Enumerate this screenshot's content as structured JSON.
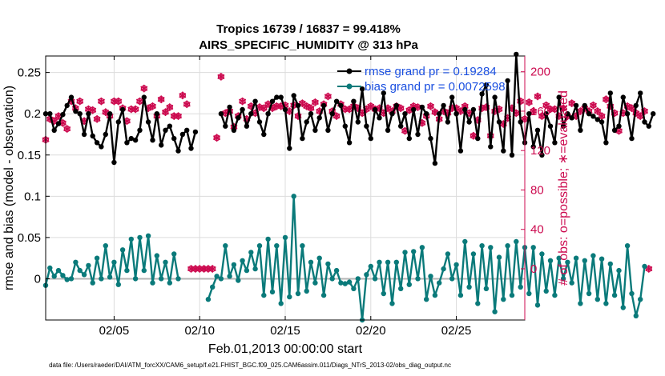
{
  "chart_data": {
    "type": "line",
    "title": "Tropics 16739 / 16837 = 99.418%",
    "subtitle": "AIRS_SPECIFIC_HUMIDITY @ 313 hPa",
    "xlabel": "Feb.01,2013 00:00:00 start",
    "ylabel": "rmse and bias (model - observation)",
    "y2label": "# of obs: o=possible; ∗=evaluated",
    "xlim": [
      1,
      29
    ],
    "ylim": [
      -0.05,
      0.27
    ],
    "y2lim": [
      -52,
      216
    ],
    "grid": true,
    "x_ticks": [
      5,
      10,
      15,
      20,
      25
    ],
    "x_tick_labels": [
      "02/05",
      "02/10",
      "02/15",
      "02/20",
      "02/25"
    ],
    "y_ticks": [
      0,
      0.05,
      0.1,
      0.15,
      0.2,
      0.25
    ],
    "y_tick_labels": [
      "0",
      "0.05",
      "0.1",
      "0.15",
      "0.2",
      "0.25"
    ],
    "y2_ticks": [
      0,
      40,
      80,
      120,
      160,
      200
    ],
    "y2_tick_labels": [
      "0",
      "40",
      "80",
      "120",
      "160",
      "200"
    ],
    "x_start": 1,
    "x_step": 0.25,
    "legend": {
      "placement": "top-right",
      "entries": [
        {
          "label": "rmse grand pr = 0.19284",
          "color": "#000000"
        },
        {
          "label": "bias grand pr = 0.0072598",
          "color": "#0a7a7a"
        }
      ]
    },
    "series": [
      {
        "name": "rmse",
        "axis": "left",
        "color": "#000000",
        "values": [
          0.2,
          0.2,
          0.18,
          0.188,
          0.199,
          0.21,
          0.22,
          0.203,
          0.2,
          0.175,
          0.2,
          0.173,
          0.165,
          0.16,
          0.175,
          0.2,
          0.141,
          0.19,
          0.205,
          0.165,
          0.17,
          0.168,
          0.18,
          0.22,
          0.19,
          0.168,
          0.2,
          0.162,
          0.18,
          0.185,
          0.17,
          0.155,
          0.175,
          0.18,
          0.158,
          0.178,
          null,
          null,
          null,
          null,
          null,
          0.2,
          0.185,
          0.208,
          0.18,
          0.195,
          0.205,
          0.185,
          0.2,
          0.215,
          0.19,
          0.175,
          0.2,
          0.215,
          0.22,
          0.22,
          0.205,
          0.158,
          0.222,
          0.21,
          0.17,
          0.19,
          0.2,
          0.18,
          0.195,
          0.21,
          0.18,
          0.2,
          0.215,
          0.21,
          0.185,
          0.165,
          0.215,
          0.19,
          0.23,
          0.185,
          0.17,
          0.205,
          0.195,
          0.225,
          0.18,
          0.2,
          0.21,
          0.185,
          0.2,
          0.17,
          0.205,
          0.175,
          0.208,
          0.2,
          0.17,
          0.14,
          0.2,
          0.21,
          0.19,
          0.22,
          0.2,
          0.155,
          0.205,
          0.19,
          0.205,
          0.17,
          0.224,
          0.235,
          0.16,
          0.22,
          0.19,
          0.155,
          0.24,
          0.15,
          0.272,
          0.19,
          0.165,
          0.2,
          0.16,
          0.18,
          0.15,
          0.2,
          0.185,
          0.165,
          0.22,
          0.185,
          0.2,
          0.195,
          0.21,
          0.18,
          0.21,
          0.2,
          0.197,
          0.193,
          0.19,
          0.165,
          0.225,
          0.18,
          0.185,
          0.22,
          0.2,
          0.17,
          0.21,
          0.225,
          0.19,
          0.185,
          0.2
        ]
      },
      {
        "name": "bias",
        "axis": "left",
        "color": "#0a7a7a",
        "values": [
          -0.008,
          0.013,
          0.003,
          0.01,
          0.004,
          -0.001,
          0.0,
          0.02,
          0.01,
          0.005,
          0.016,
          -0.005,
          0.025,
          0.0,
          0.04,
          0.002,
          0.02,
          -0.007,
          0.035,
          0.01,
          0.048,
          0.0,
          0.05,
          0.01,
          0.052,
          -0.005,
          0.028,
          0.0,
          0.02,
          -0.005,
          0.03,
          0.0,
          null,
          null,
          null,
          null,
          null,
          null,
          -0.025,
          -0.01,
          0.003,
          0.0,
          0.04,
          0.003,
          0.017,
          -0.002,
          0.022,
          0.01,
          0.032,
          0.012,
          0.04,
          -0.02,
          0.048,
          -0.016,
          0.04,
          -0.03,
          0.05,
          -0.022,
          0.1,
          -0.018,
          0.04,
          -0.015,
          0.02,
          -0.005,
          0.025,
          -0.02,
          0.018,
          0.0,
          0.01,
          -0.005,
          -0.006,
          -0.004,
          -0.012,
          0.0,
          -0.05,
          0.005,
          0.015,
          0.0,
          0.02,
          -0.018,
          0.02,
          -0.03,
          0.02,
          -0.012,
          0.032,
          -0.007,
          0.033,
          0.0,
          0.038,
          -0.025,
          0.003,
          -0.02,
          -0.005,
          0.012,
          0.03,
          0.0,
          0.017,
          -0.02,
          0.045,
          -0.01,
          0.03,
          -0.03,
          0.04,
          -0.012,
          0.038,
          -0.04,
          0.026,
          -0.025,
          0.04,
          -0.02,
          0.045,
          -0.01,
          0.038,
          -0.018,
          0.038,
          -0.032,
          0.03,
          -0.015,
          0.022,
          -0.02,
          0.025,
          0.0,
          0.02,
          -0.005,
          0.025,
          -0.03,
          0.022,
          -0.018,
          0.028,
          -0.025,
          0.024,
          -0.03,
          0.018,
          -0.02,
          0.01,
          -0.035,
          0.04,
          -0.018,
          -0.045,
          -0.025,
          0.015
        ]
      },
      {
        "name": "obs possible",
        "axis": "right",
        "color": "#cc0a4f",
        "marker": "o",
        "values": [
          131,
          152,
          150,
          155,
          148,
          142,
          170,
          163,
          170,
          150,
          162,
          161,
          152,
          170,
          159,
          155,
          170,
          170,
          163,
          150,
          162,
          162,
          170,
          183,
          163,
          165,
          155,
          172,
          159,
          164,
          155,
          155,
          176,
          167,
          0,
          0,
          0,
          0,
          0,
          0,
          133,
          195,
          158,
          160,
          144,
          155,
          170,
          152,
          165,
          158,
          164,
          163,
          167,
          163,
          165,
          165,
          166,
          160,
          166,
          155,
          168,
          165,
          163,
          169,
          160,
          167,
          175,
          160,
          155,
          167,
          162,
          162,
          165,
          163,
          158,
          162,
          165,
          162,
          163,
          158,
          163,
          160,
          165,
          163,
          140,
          161,
          165,
          164,
          148,
          155,
          165,
          159,
          152,
          160,
          158,
          163,
          163,
          160,
          165,
          158,
          135,
          151,
          163,
          164,
          135,
          160,
          162,
          147,
          153,
          163,
          158,
          170,
          152,
          169,
          160,
          175,
          155,
          166,
          162,
          162,
          155,
          163,
          155,
          168,
          155,
          160,
          163,
          160,
          166,
          160,
          155,
          172,
          165,
          158,
          140,
          158,
          165,
          163,
          158,
          155,
          160,
          0
        ]
      },
      {
        "name": "obs evaluated",
        "axis": "right",
        "color": "#cc0a4f",
        "marker": "*",
        "values": [
          131,
          152,
          150,
          155,
          148,
          142,
          170,
          163,
          170,
          150,
          162,
          161,
          152,
          170,
          159,
          155,
          170,
          170,
          163,
          150,
          162,
          162,
          170,
          183,
          163,
          165,
          155,
          172,
          159,
          164,
          155,
          155,
          176,
          167,
          0,
          0,
          0,
          0,
          0,
          0,
          133,
          195,
          158,
          160,
          144,
          155,
          170,
          152,
          165,
          158,
          164,
          163,
          167,
          163,
          165,
          165,
          166,
          160,
          166,
          155,
          168,
          165,
          163,
          169,
          160,
          167,
          175,
          160,
          155,
          167,
          162,
          162,
          165,
          163,
          158,
          162,
          165,
          162,
          163,
          158,
          163,
          160,
          165,
          163,
          140,
          161,
          165,
          164,
          148,
          155,
          165,
          159,
          152,
          160,
          158,
          163,
          163,
          160,
          165,
          158,
          135,
          151,
          163,
          164,
          135,
          160,
          162,
          147,
          153,
          163,
          158,
          170,
          152,
          169,
          160,
          175,
          155,
          166,
          162,
          162,
          155,
          163,
          155,
          168,
          155,
          160,
          163,
          160,
          166,
          160,
          155,
          172,
          165,
          158,
          140,
          158,
          165,
          163,
          158,
          155,
          160,
          0
        ]
      }
    ]
  },
  "footer": {
    "data_file": "data file: /Users/raeder/DAI/ATM_forcXX/CAM6_setup/f.e21.FHIST_BGC.f09_025.CAM6assim.011/Diags_NTrS_2013-02/obs_diag_output.nc"
  }
}
